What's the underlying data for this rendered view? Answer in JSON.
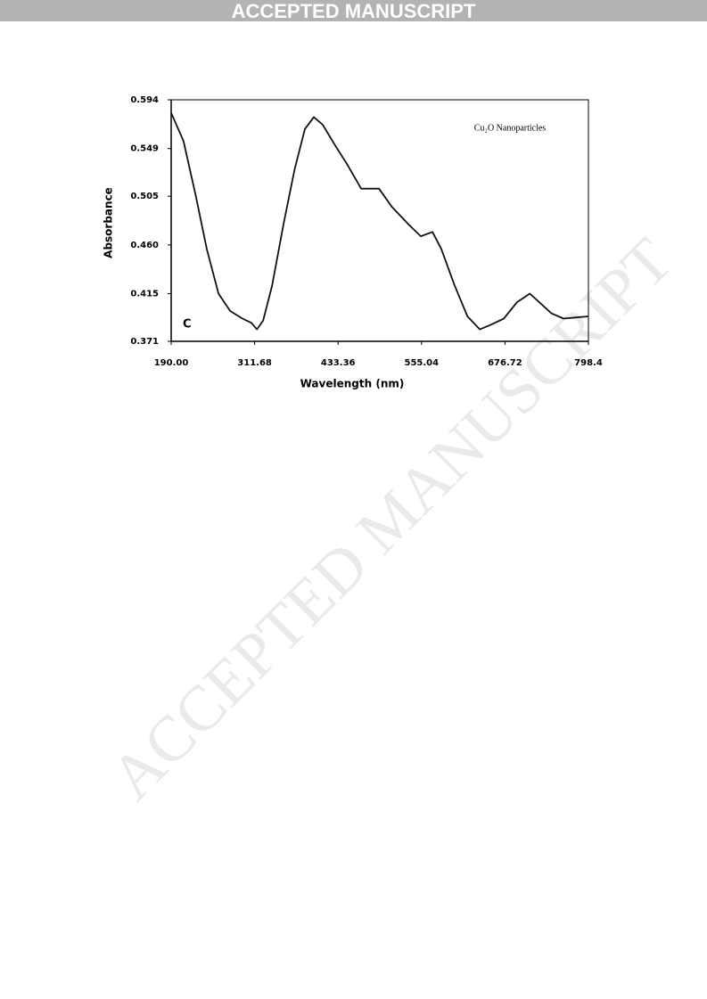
{
  "header": "ACCEPTED MANUSCRIPT",
  "watermark": "ACCEPTED MANUSCRIPT",
  "chart_data": {
    "type": "line",
    "annotation": "Cu₂O Nanoparticles",
    "panel_label": "C",
    "xlabel": "Wavelength (nm)",
    "ylabel": "Absorbance",
    "color": "#111111",
    "xlim": [
      190,
      798.4
    ],
    "ylim": [
      0.371,
      0.594
    ],
    "xticks": [
      {
        "value": 190,
        "label": "190.00"
      },
      311.68,
      433.36,
      555.04,
      676.72,
      798.4
    ],
    "yticks": [
      0.371,
      0.415,
      {
        "value": 0.46,
        "label": "0.460"
      },
      0.505,
      0.549,
      0.594
    ],
    "x": [
      190,
      208,
      226,
      242,
      259,
      276,
      294,
      307,
      315,
      324,
      337,
      354,
      370,
      385,
      398,
      411,
      428,
      447,
      467,
      480,
      493,
      512,
      536,
      554,
      571,
      584,
      603,
      622,
      640,
      655,
      675,
      694,
      713,
      727,
      744,
      762,
      779,
      798.4
    ],
    "values": [
      0.582,
      0.556,
      0.505,
      0.456,
      0.415,
      0.399,
      0.392,
      0.388,
      0.382,
      0.39,
      0.422,
      0.48,
      0.53,
      0.567,
      0.578,
      0.571,
      0.553,
      0.534,
      0.512,
      0.512,
      0.512,
      0.495,
      0.479,
      0.468,
      0.472,
      0.456,
      0.423,
      0.394,
      0.382,
      0.386,
      0.392,
      0.407,
      0.415,
      0.407,
      0.397,
      0.392,
      0.393,
      0.394
    ]
  }
}
